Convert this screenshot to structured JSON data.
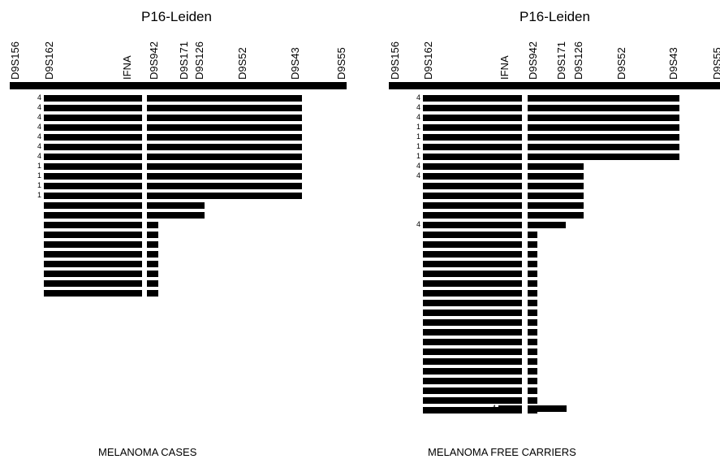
{
  "left": {
    "title": "P16-Leiden",
    "caption": "MELANOMA CASES",
    "markers": [
      "D9S156",
      "D9S162",
      "IFNA",
      "D9S942",
      "D9S171",
      "D9S126",
      "D9S52",
      "D9S43",
      "D9S55"
    ],
    "row_labels": [
      "4",
      "4",
      "4",
      "4",
      "4",
      "4",
      "4",
      "1",
      "1",
      "1",
      "1",
      "",
      "",
      "",
      "",
      "",
      "",
      "",
      "",
      "",
      ""
    ]
  },
  "right": {
    "title": "P16-Leiden",
    "caption": "MELANOMA FREE CARRIERS",
    "markers": [
      "D9S156",
      "D9S162",
      "IFNA",
      "D9S942",
      "D9S171",
      "D9S126",
      "D9S52",
      "D9S43",
      "D9S55"
    ],
    "row_labels": [
      "4",
      "4",
      "4",
      "1",
      "1",
      "1",
      "1",
      "4",
      "4",
      "",
      "",
      "",
      "",
      "4",
      "",
      "",
      "",
      "",
      "",
      "",
      "",
      "",
      "",
      "",
      "",
      "",
      "",
      "",
      "",
      "",
      "",
      "",
      "",
      "4"
    ]
  }
}
